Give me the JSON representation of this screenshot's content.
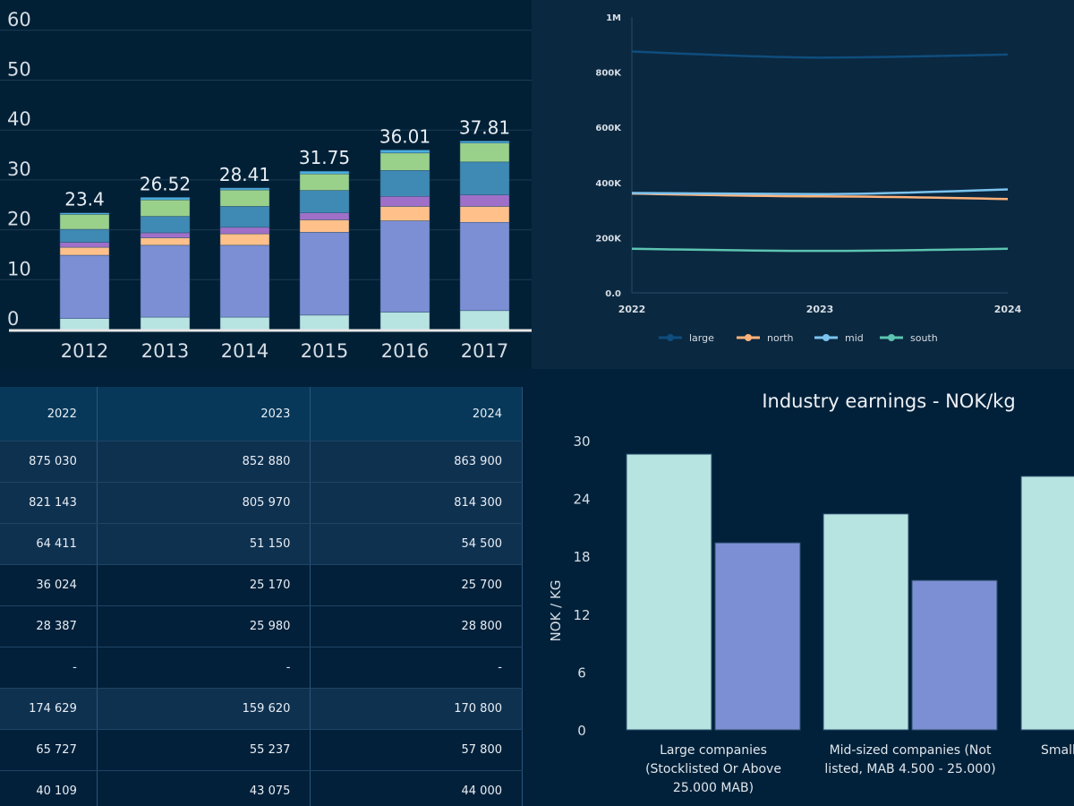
{
  "chart_data": [
    {
      "type": "bar",
      "stacked": true,
      "categories": [
        "2012",
        "2013",
        "2014",
        "2015",
        "2016",
        "2017"
      ],
      "totals_labels": [
        "23.4",
        "26.52",
        "28.41",
        "31.75",
        "36.01",
        "37.81"
      ],
      "yticks": [
        "0",
        "10",
        "20",
        "30",
        "40",
        "50",
        "60"
      ],
      "ylim": [
        0,
        60
      ],
      "grid": true,
      "series": [
        {
          "color": "#b7e3e1",
          "values": [
            2.2,
            2.5,
            2.5,
            2.9,
            3.5,
            3.8
          ]
        },
        {
          "color": "#7d8fd4",
          "values": [
            12.7,
            14.4,
            14.4,
            16.6,
            18.3,
            17.7
          ]
        },
        {
          "color": "#ffc08a",
          "values": [
            1.6,
            1.5,
            2.3,
            2.5,
            2.9,
            3.2
          ]
        },
        {
          "color": "#a070c8",
          "values": [
            1.0,
            1.0,
            1.3,
            1.4,
            2.0,
            2.3
          ]
        },
        {
          "color": "#3f8ab4",
          "values": [
            2.6,
            3.3,
            4.2,
            4.5,
            5.2,
            6.6
          ]
        },
        {
          "color": "#9ad18a",
          "values": [
            3.0,
            3.3,
            3.3,
            3.3,
            3.5,
            3.8
          ]
        },
        {
          "color": "#4aaee0",
          "values": [
            0.3,
            0.5,
            0.4,
            0.55,
            0.6,
            0.4
          ]
        }
      ]
    },
    {
      "type": "line",
      "x": [
        "2022",
        "2023",
        "2024"
      ],
      "yticks": [
        "0.0",
        "200K",
        "400K",
        "600K",
        "800K",
        "1M"
      ],
      "ylim": [
        0,
        1000000
      ],
      "legend": "bottom",
      "series": [
        {
          "name": "large",
          "color": "#0f4d7e",
          "values": [
            875030,
            852880,
            863900
          ]
        },
        {
          "name": "north",
          "color": "#ffb27a",
          "values": [
            360000,
            350000,
            340000
          ]
        },
        {
          "name": "mid",
          "color": "#7cc4f0",
          "values": [
            362000,
            358000,
            375000
          ]
        },
        {
          "name": "south",
          "color": "#5cc4b0",
          "values": [
            160000,
            152000,
            160000
          ]
        }
      ]
    },
    {
      "type": "table",
      "columns": [
        "2022",
        "2023",
        "2024"
      ],
      "rows": [
        [
          "875 030",
          "852 880",
          "863 900"
        ],
        [
          "821 143",
          "805 970",
          "814 300"
        ],
        [
          "64 411",
          "51 150",
          "54 500"
        ],
        [
          "36 024",
          "25 170",
          "25 700"
        ],
        [
          "28 387",
          "25 980",
          "28 800"
        ],
        [
          "-",
          "-",
          "-"
        ],
        [
          "174 629",
          "159 620",
          "170 800"
        ],
        [
          "65 727",
          "55 237",
          "57 800"
        ],
        [
          "40 109",
          "43 075",
          "44 000"
        ]
      ]
    },
    {
      "type": "bar",
      "title": "Industry earnings - NOK/kg",
      "ylabel": "NOK / KG",
      "yticks": [
        "0",
        "6",
        "12",
        "18",
        "24",
        "30"
      ],
      "ylim": [
        0,
        30
      ],
      "categories": [
        "Large companies (Stocklisted Or Above 25.000 MAB)",
        "Mid-sized companies (Not listed, MAB 4.500 - 25.000)",
        "Small (B"
      ],
      "category_lines": [
        [
          "Large companies",
          "(Stocklisted Or Above",
          "25.000 MAB)"
        ],
        [
          "Mid-sized companies (Not",
          "listed, MAB 4.500 - 25.000)"
        ],
        [
          "Small (B"
        ]
      ],
      "series": [
        {
          "color": "#b7e3e1",
          "values": [
            28.6,
            22.4,
            26.3
          ]
        },
        {
          "color": "#7d8fd4",
          "values": [
            19.4,
            15.5,
            null
          ]
        }
      ]
    }
  ]
}
